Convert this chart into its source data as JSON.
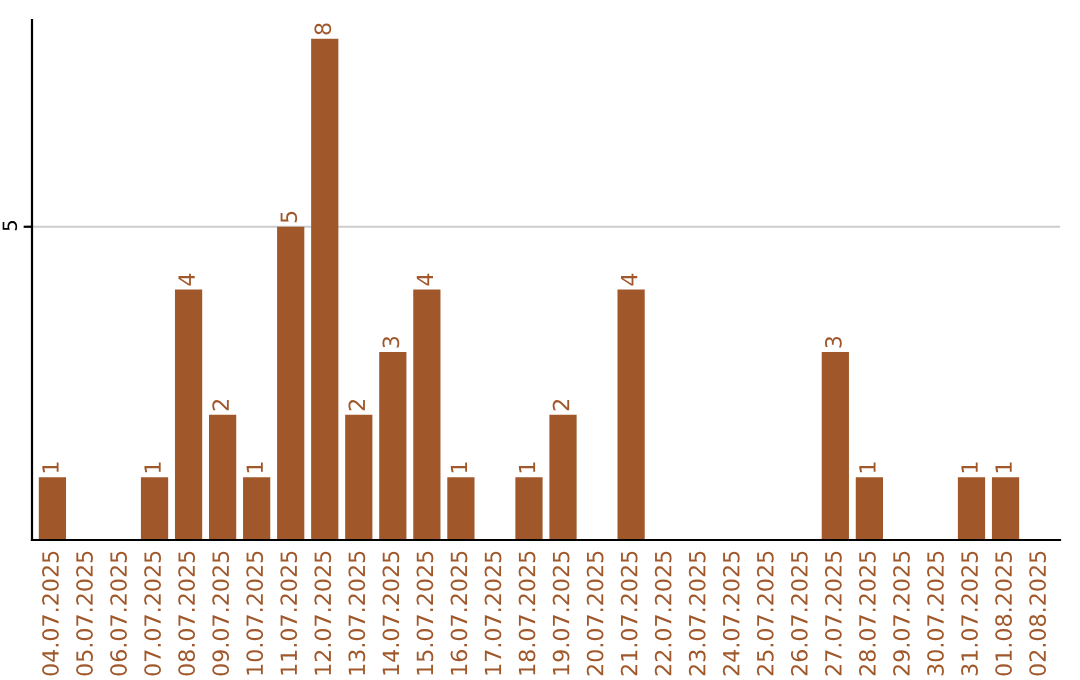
{
  "chart_data": {
    "type": "bar",
    "categories": [
      "04.07.2025",
      "05.07.2025",
      "06.07.2025",
      "07.07.2025",
      "08.07.2025",
      "09.07.2025",
      "10.07.2025",
      "11.07.2025",
      "12.07.2025",
      "13.07.2025",
      "14.07.2025",
      "15.07.2025",
      "16.07.2025",
      "17.07.2025",
      "18.07.2025",
      "19.07.2025",
      "20.07.2025",
      "21.07.2025",
      "22.07.2025",
      "23.07.2025",
      "24.07.2025",
      "25.07.2025",
      "26.07.2025",
      "27.07.2025",
      "28.07.2025",
      "29.07.2025",
      "30.07.2025",
      "31.07.2025",
      "01.08.2025",
      "02.08.2025"
    ],
    "values": [
      1,
      0,
      0,
      1,
      4,
      2,
      1,
      5,
      8,
      2,
      3,
      4,
      1,
      0,
      1,
      2,
      0,
      4,
      0,
      0,
      0,
      0,
      0,
      3,
      1,
      0,
      0,
      1,
      1,
      0
    ],
    "value_labels": [
      "1",
      null,
      null,
      "1",
      "4",
      "2",
      "1",
      "5",
      "8",
      "2",
      "3",
      "4",
      "1",
      null,
      "1",
      "2",
      null,
      "4",
      null,
      null,
      null,
      null,
      null,
      "3",
      "1",
      null,
      null,
      "1",
      "1",
      null
    ],
    "color": "#a0572a",
    "ylim": [
      0,
      8.3
    ],
    "yticks": [
      5
    ],
    "grid": "y"
  }
}
